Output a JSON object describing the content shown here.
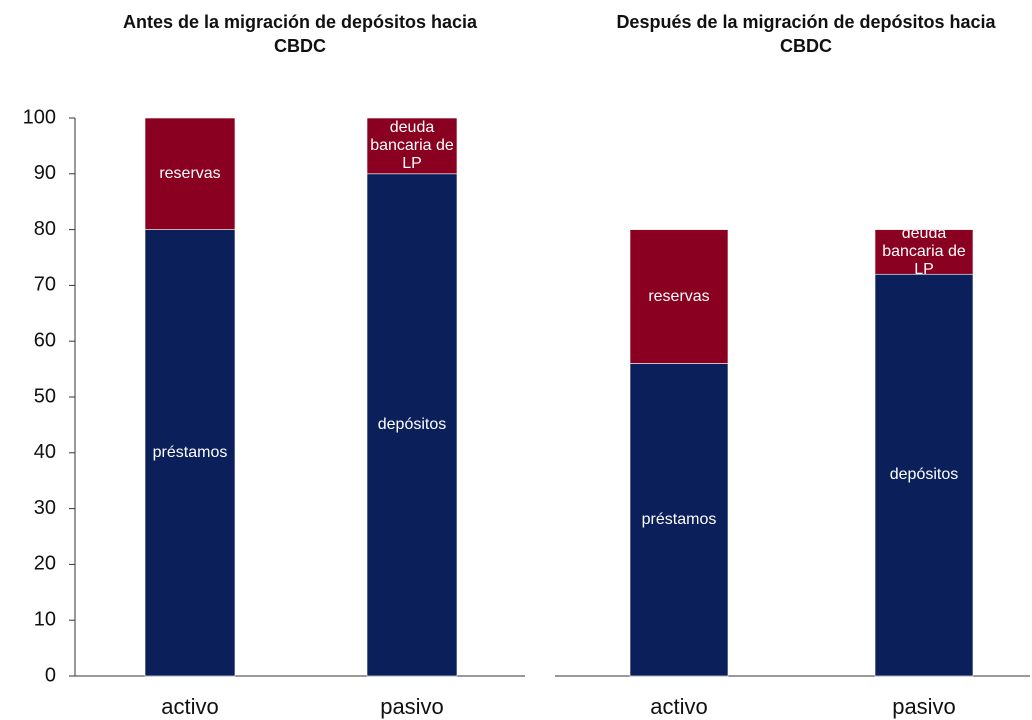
{
  "chart_data": [
    {
      "type": "bar",
      "stacked": true,
      "title": "Antes de la migración de depósitos hacia CBDC",
      "categories": [
        "activo",
        "pasivo"
      ],
      "series": [
        {
          "name": "préstamos",
          "color": "#0b1f5b",
          "values": [
            80,
            null
          ]
        },
        {
          "name": "depósitos",
          "color": "#0b1f5b",
          "values": [
            null,
            90
          ]
        },
        {
          "name": "reservas",
          "color": "#8a0020",
          "values": [
            20,
            null
          ]
        },
        {
          "name": "deuda bancaria de LP",
          "color": "#8a0020",
          "values": [
            null,
            10
          ]
        }
      ],
      "ylim": [
        0,
        100
      ],
      "yticks": [
        0,
        10,
        20,
        30,
        40,
        50,
        60,
        70,
        80,
        90,
        100
      ]
    },
    {
      "type": "bar",
      "stacked": true,
      "title": "Después de la migración de depósitos hacia CBDC",
      "categories": [
        "activo",
        "pasivo"
      ],
      "series": [
        {
          "name": "préstamos",
          "color": "#0b1f5b",
          "values": [
            56,
            null
          ]
        },
        {
          "name": "depósitos",
          "color": "#0b1f5b",
          "values": [
            null,
            72
          ]
        },
        {
          "name": "reservas",
          "color": "#8a0020",
          "values": [
            24,
            null
          ]
        },
        {
          "name": "deuda bancaria de LP",
          "color": "#8a0020",
          "values": [
            null,
            8
          ]
        }
      ],
      "ylim": [
        0,
        100
      ]
    }
  ]
}
